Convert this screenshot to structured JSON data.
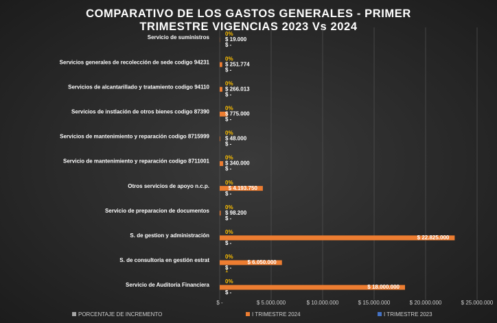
{
  "chart_data": {
    "type": "bar",
    "orientation": "horizontal",
    "title": "COMPARATIVO DE LOS GASTOS GENERALES - PRIMER TRIMESTRE VIGENCIAS 2023 Vs 2024",
    "annotation": "1",
    "categories": [
      "Servicio de suministros",
      "Servicios generales de recolección de sede codigo 94231",
      "Servicios de alcantarillado y tratamiento codigo 94110",
      "Servicios de instlación  de otros bienes codigo 87390",
      "Servicios de mantenimiento y reparación codigo 8715999",
      "Servicio de mantenimiento y reparación codigo 8711001",
      "Otros servicios de apoyo n.c.p.",
      "Servicio de preparacion de documentos",
      "S. de gestion y administración",
      "S. de consultoria en gestión estrat",
      "Servicio de Auditoria Financiera"
    ],
    "series": [
      {
        "name": "PORCENTAJE DE INCREMENTO",
        "color": "#a5a5a5",
        "label_color": "#ffc000",
        "values": [
          0,
          0,
          0,
          0,
          0,
          0,
          0,
          0,
          0,
          0,
          0
        ],
        "value_labels": [
          "0%",
          "0%",
          "0%",
          "0%",
          "0%",
          "0%",
          "0%",
          "0%",
          "0%",
          "0%",
          "0%"
        ]
      },
      {
        "name": "I TRIMESTRE 2024",
        "color": "#ed7d31",
        "label_color": "#ffffff",
        "values": [
          19000,
          251774,
          266013,
          775000,
          48000,
          340000,
          4193750,
          98200,
          22825000,
          6050000,
          18000000
        ],
        "value_labels": [
          "$ 19.000",
          "$ 251.774",
          "$ 266.013",
          "$ 775.000",
          "$ 48.000",
          "$ 340.000",
          "$ 4.193.750",
          "$ 98.200",
          "$ 22.825.000",
          "$ 6.050.000",
          "$ 18.000.000"
        ]
      },
      {
        "name": "I TRIMESTRE 2023",
        "color": "#4472c4",
        "label_color": "#ffffff",
        "values": [
          0,
          0,
          0,
          0,
          0,
          0,
          0,
          0,
          0,
          0,
          0
        ],
        "value_labels": [
          "$ -",
          "$ -",
          "$ -",
          "$ -",
          "$ -",
          "$ -",
          "$ -",
          "$ -",
          "$ -",
          "$ -",
          "$ -"
        ]
      }
    ],
    "xlim": [
      0,
      25000000
    ],
    "xticks": [
      {
        "value": 0,
        "label": "$ -"
      },
      {
        "value": 5000000,
        "label": "$ 5.000.000"
      },
      {
        "value": 10000000,
        "label": "$ 10.000.000"
      },
      {
        "value": 15000000,
        "label": "$ 15.000.000"
      },
      {
        "value": 20000000,
        "label": "$ 20.000.000"
      },
      {
        "value": 25000000,
        "label": "$ 25.000.000"
      }
    ],
    "grid": true,
    "legend": "bottom"
  }
}
